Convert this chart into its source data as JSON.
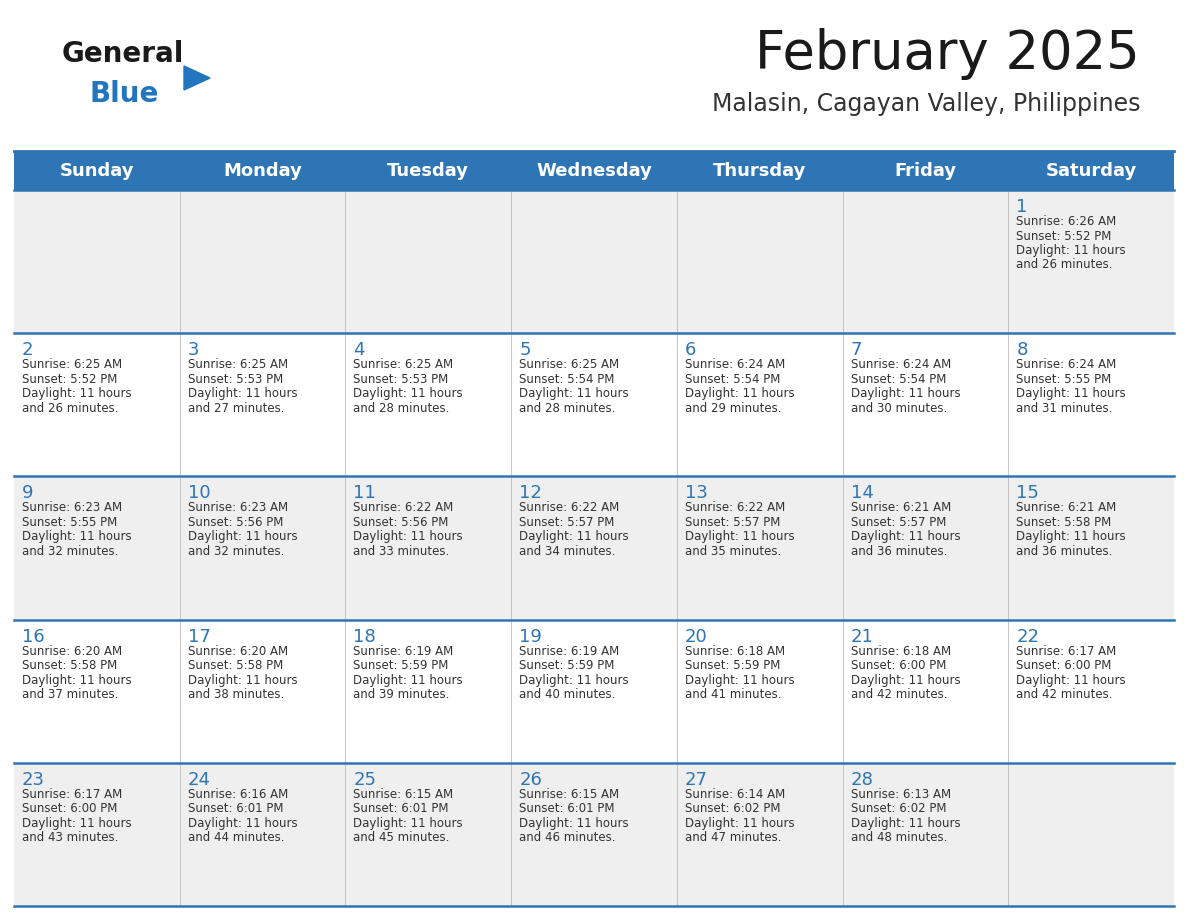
{
  "title": "February 2025",
  "subtitle": "Malasin, Cagayan Valley, Philippines",
  "days_of_week": [
    "Sunday",
    "Monday",
    "Tuesday",
    "Wednesday",
    "Thursday",
    "Friday",
    "Saturday"
  ],
  "header_bg": "#2E75B6",
  "header_text_color": "#FFFFFF",
  "row_bg_odd": "#EFEFEF",
  "row_bg_even": "#FFFFFF",
  "cell_text_color": "#333333",
  "day_num_color": "#2E75B6",
  "separator_color": "#2E75B6",
  "title_color": "#1a1a1a",
  "subtitle_color": "#333333",
  "logo_general_color": "#1a1a1a",
  "logo_blue_color": "#2275BF",
  "calendar_data": [
    {
      "day": 1,
      "week": 0,
      "dow": 6,
      "sunrise": "6:26 AM",
      "sunset": "5:52 PM",
      "daylight_hours": 11,
      "daylight_minutes": 26
    },
    {
      "day": 2,
      "week": 1,
      "dow": 0,
      "sunrise": "6:25 AM",
      "sunset": "5:52 PM",
      "daylight_hours": 11,
      "daylight_minutes": 26
    },
    {
      "day": 3,
      "week": 1,
      "dow": 1,
      "sunrise": "6:25 AM",
      "sunset": "5:53 PM",
      "daylight_hours": 11,
      "daylight_minutes": 27
    },
    {
      "day": 4,
      "week": 1,
      "dow": 2,
      "sunrise": "6:25 AM",
      "sunset": "5:53 PM",
      "daylight_hours": 11,
      "daylight_minutes": 28
    },
    {
      "day": 5,
      "week": 1,
      "dow": 3,
      "sunrise": "6:25 AM",
      "sunset": "5:54 PM",
      "daylight_hours": 11,
      "daylight_minutes": 28
    },
    {
      "day": 6,
      "week": 1,
      "dow": 4,
      "sunrise": "6:24 AM",
      "sunset": "5:54 PM",
      "daylight_hours": 11,
      "daylight_minutes": 29
    },
    {
      "day": 7,
      "week": 1,
      "dow": 5,
      "sunrise": "6:24 AM",
      "sunset": "5:54 PM",
      "daylight_hours": 11,
      "daylight_minutes": 30
    },
    {
      "day": 8,
      "week": 1,
      "dow": 6,
      "sunrise": "6:24 AM",
      "sunset": "5:55 PM",
      "daylight_hours": 11,
      "daylight_minutes": 31
    },
    {
      "day": 9,
      "week": 2,
      "dow": 0,
      "sunrise": "6:23 AM",
      "sunset": "5:55 PM",
      "daylight_hours": 11,
      "daylight_minutes": 32
    },
    {
      "day": 10,
      "week": 2,
      "dow": 1,
      "sunrise": "6:23 AM",
      "sunset": "5:56 PM",
      "daylight_hours": 11,
      "daylight_minutes": 32
    },
    {
      "day": 11,
      "week": 2,
      "dow": 2,
      "sunrise": "6:22 AM",
      "sunset": "5:56 PM",
      "daylight_hours": 11,
      "daylight_minutes": 33
    },
    {
      "day": 12,
      "week": 2,
      "dow": 3,
      "sunrise": "6:22 AM",
      "sunset": "5:57 PM",
      "daylight_hours": 11,
      "daylight_minutes": 34
    },
    {
      "day": 13,
      "week": 2,
      "dow": 4,
      "sunrise": "6:22 AM",
      "sunset": "5:57 PM",
      "daylight_hours": 11,
      "daylight_minutes": 35
    },
    {
      "day": 14,
      "week": 2,
      "dow": 5,
      "sunrise": "6:21 AM",
      "sunset": "5:57 PM",
      "daylight_hours": 11,
      "daylight_minutes": 36
    },
    {
      "day": 15,
      "week": 2,
      "dow": 6,
      "sunrise": "6:21 AM",
      "sunset": "5:58 PM",
      "daylight_hours": 11,
      "daylight_minutes": 36
    },
    {
      "day": 16,
      "week": 3,
      "dow": 0,
      "sunrise": "6:20 AM",
      "sunset": "5:58 PM",
      "daylight_hours": 11,
      "daylight_minutes": 37
    },
    {
      "day": 17,
      "week": 3,
      "dow": 1,
      "sunrise": "6:20 AM",
      "sunset": "5:58 PM",
      "daylight_hours": 11,
      "daylight_minutes": 38
    },
    {
      "day": 18,
      "week": 3,
      "dow": 2,
      "sunrise": "6:19 AM",
      "sunset": "5:59 PM",
      "daylight_hours": 11,
      "daylight_minutes": 39
    },
    {
      "day": 19,
      "week": 3,
      "dow": 3,
      "sunrise": "6:19 AM",
      "sunset": "5:59 PM",
      "daylight_hours": 11,
      "daylight_minutes": 40
    },
    {
      "day": 20,
      "week": 3,
      "dow": 4,
      "sunrise": "6:18 AM",
      "sunset": "5:59 PM",
      "daylight_hours": 11,
      "daylight_minutes": 41
    },
    {
      "day": 21,
      "week": 3,
      "dow": 5,
      "sunrise": "6:18 AM",
      "sunset": "6:00 PM",
      "daylight_hours": 11,
      "daylight_minutes": 42
    },
    {
      "day": 22,
      "week": 3,
      "dow": 6,
      "sunrise": "6:17 AM",
      "sunset": "6:00 PM",
      "daylight_hours": 11,
      "daylight_minutes": 42
    },
    {
      "day": 23,
      "week": 4,
      "dow": 0,
      "sunrise": "6:17 AM",
      "sunset": "6:00 PM",
      "daylight_hours": 11,
      "daylight_minutes": 43
    },
    {
      "day": 24,
      "week": 4,
      "dow": 1,
      "sunrise": "6:16 AM",
      "sunset": "6:01 PM",
      "daylight_hours": 11,
      "daylight_minutes": 44
    },
    {
      "day": 25,
      "week": 4,
      "dow": 2,
      "sunrise": "6:15 AM",
      "sunset": "6:01 PM",
      "daylight_hours": 11,
      "daylight_minutes": 45
    },
    {
      "day": 26,
      "week": 4,
      "dow": 3,
      "sunrise": "6:15 AM",
      "sunset": "6:01 PM",
      "daylight_hours": 11,
      "daylight_minutes": 46
    },
    {
      "day": 27,
      "week": 4,
      "dow": 4,
      "sunrise": "6:14 AM",
      "sunset": "6:02 PM",
      "daylight_hours": 11,
      "daylight_minutes": 47
    },
    {
      "day": 28,
      "week": 4,
      "dow": 5,
      "sunrise": "6:13 AM",
      "sunset": "6:02 PM",
      "daylight_hours": 11,
      "daylight_minutes": 48
    }
  ]
}
